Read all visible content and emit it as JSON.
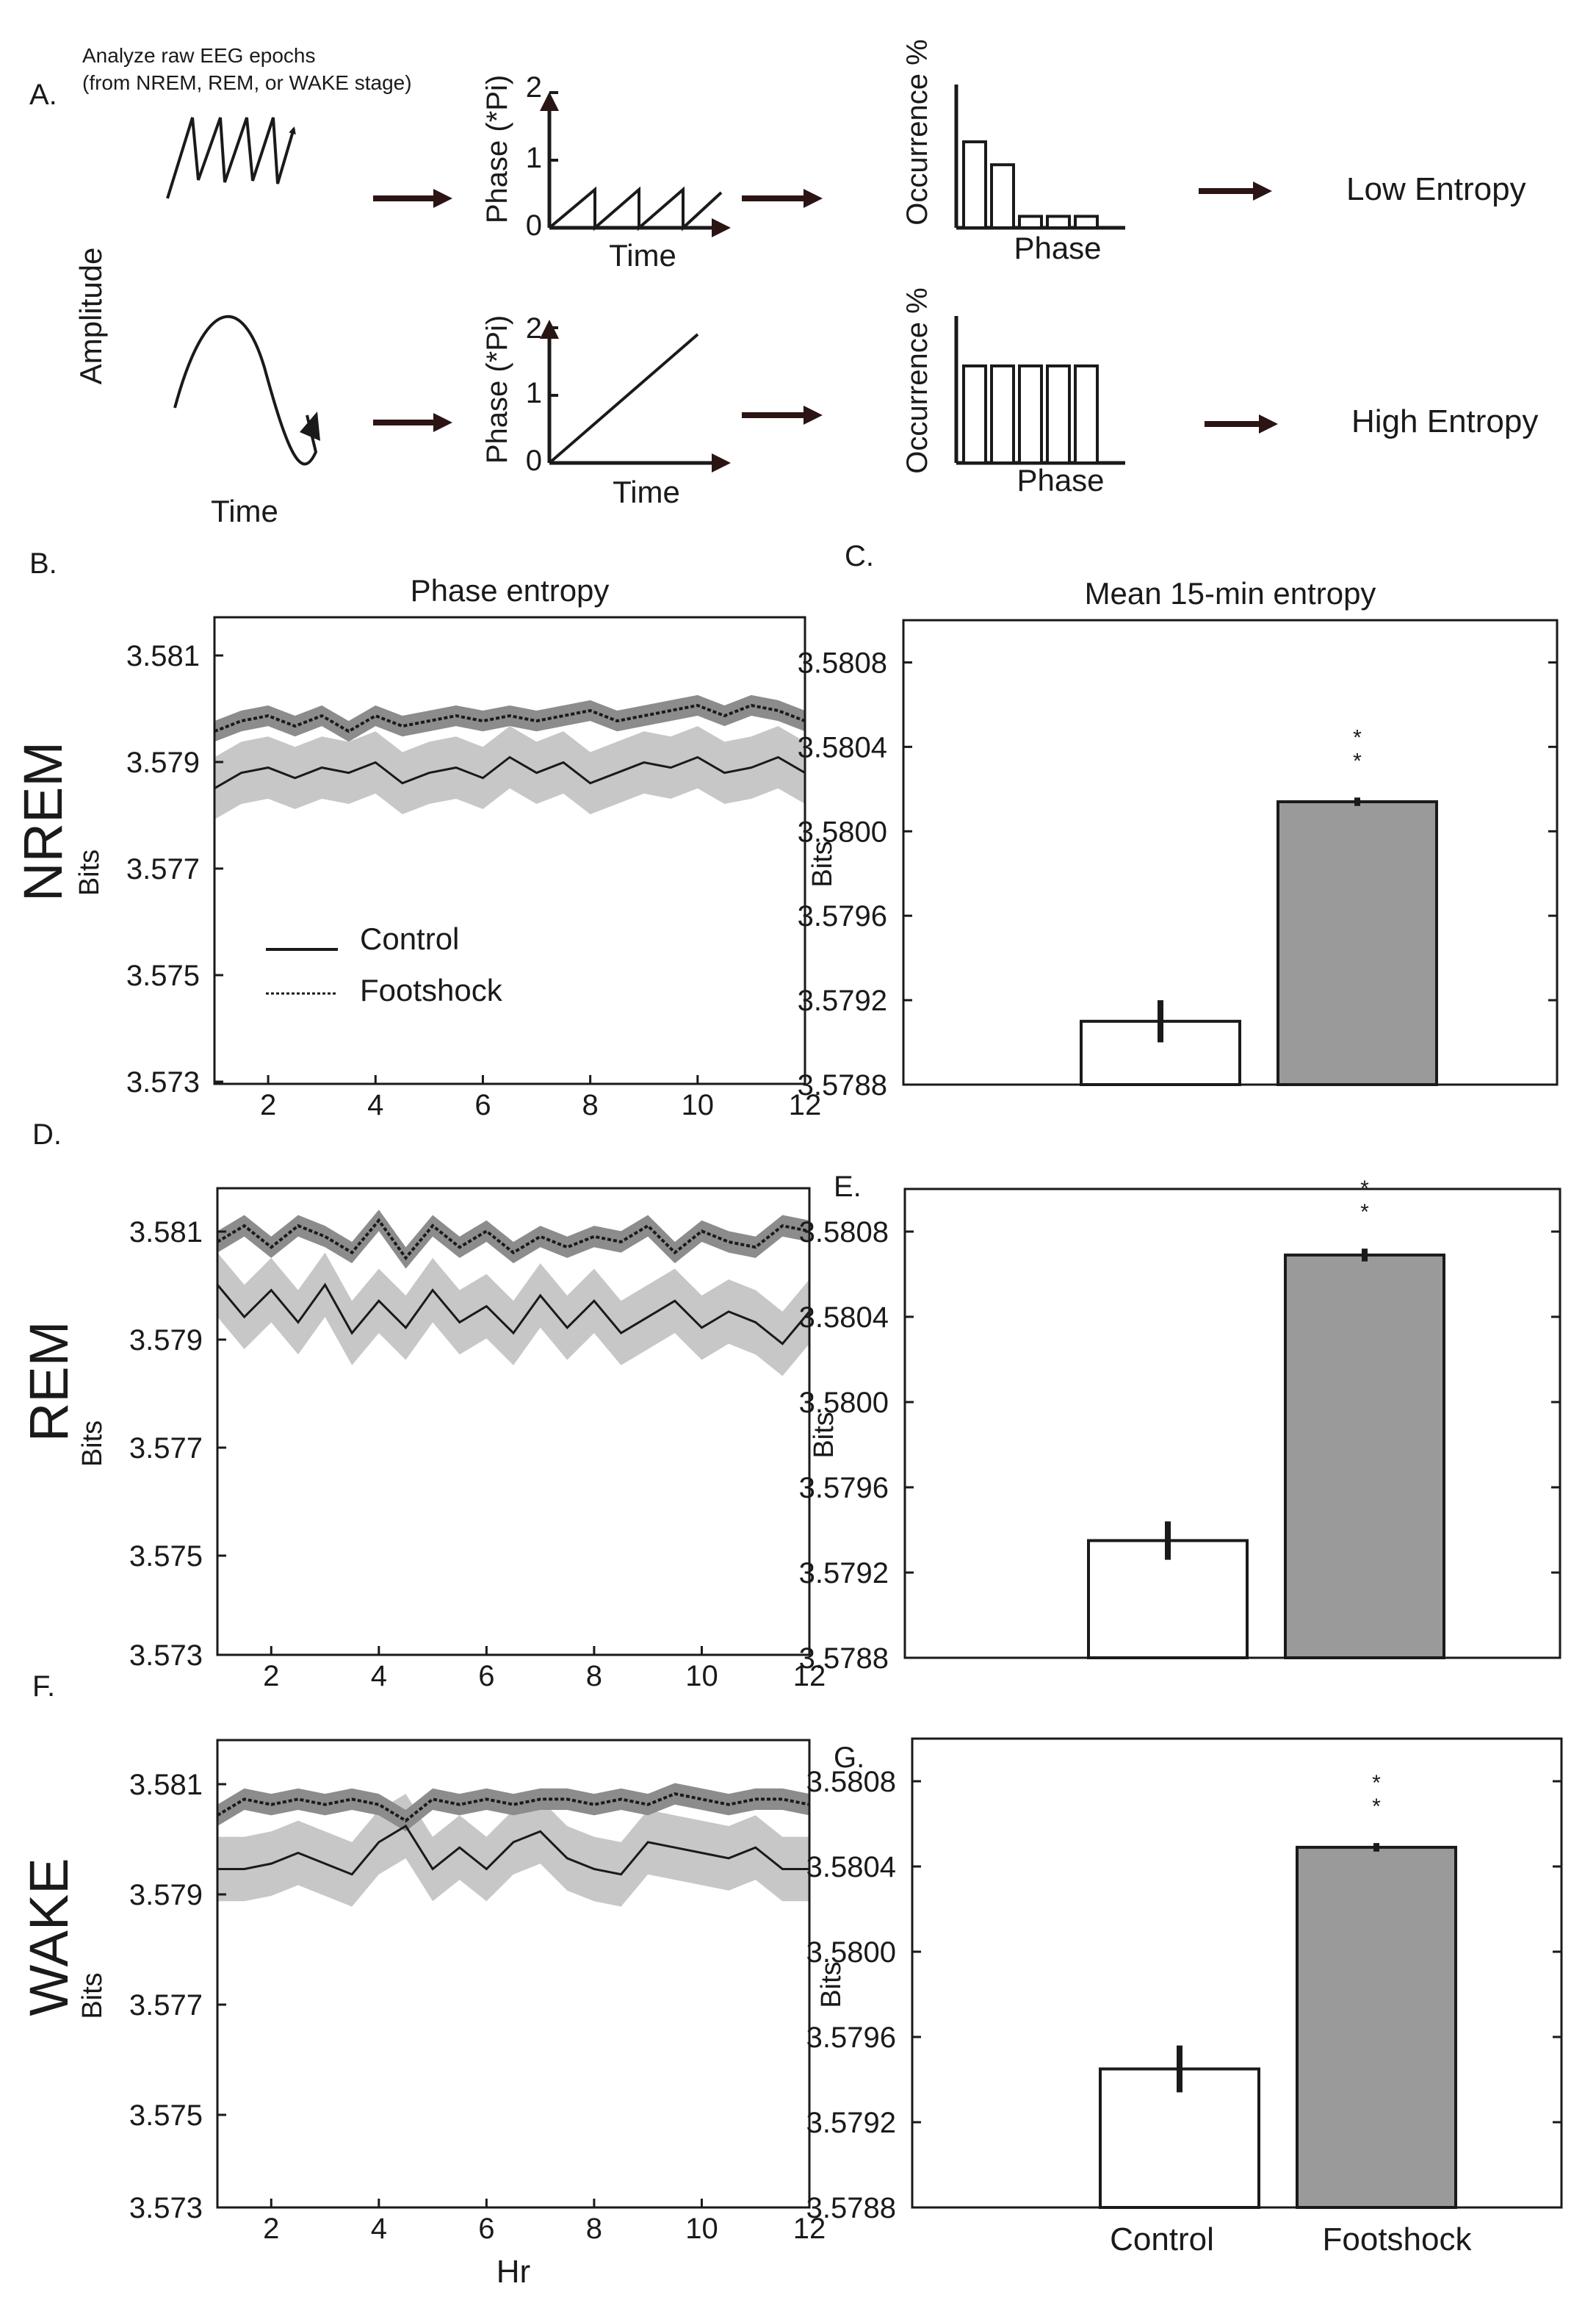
{
  "colors": {
    "ink": "#1a1a1a",
    "arrow": "#2b1414",
    "control_line": "#1a1a1a",
    "control_band": "#c7c7c7",
    "footshock_band": "#8c8c8c",
    "bar_control": "#ffffff",
    "bar_footshock": "#9a9a9a"
  },
  "panel_a": {
    "letter": "A.",
    "note_line1": "Analyze raw EEG epochs",
    "note_line2": "(from NREM, REM, or WAKE stage)",
    "amplitude_label": "Amplitude",
    "time_label": "Time",
    "phase_axis_label": "Phase (*Pi)",
    "phase_ticks": [
      "2",
      "1",
      "0"
    ],
    "occurrence_label": "Occurrence %",
    "phase_label": "Phase",
    "top_hist_rel": [
      0.6,
      0.44,
      0.08,
      0.08,
      0.08
    ],
    "bottom_hist_rel": [
      0.66,
      0.66,
      0.66,
      0.66,
      0.66
    ],
    "low_entropy": "Low Entropy",
    "high_entropy": "High Entropy"
  },
  "row_titles": [
    "NREM",
    "REM",
    "WAKE"
  ],
  "legend": {
    "control": "Control",
    "footshock": "Footshock"
  },
  "significance": "* *",
  "chart_data": [
    {
      "id": "B",
      "letter": "B.",
      "type": "line",
      "title": "Phase entropy",
      "xlabel": "",
      "ylabel": "Bits",
      "xlim": [
        1,
        12
      ],
      "ylim": [
        3.573,
        3.582
      ],
      "yticks": [
        "3.581",
        "3.579",
        "3.577",
        "3.575",
        "3.573"
      ],
      "xticks": [
        "2",
        "4",
        "6",
        "8",
        "10",
        "12"
      ],
      "series": [
        {
          "name": "Control",
          "x": [
            1,
            1.5,
            2,
            2.5,
            3,
            3.5,
            4,
            4.5,
            5,
            5.5,
            6,
            6.5,
            7,
            7.5,
            8,
            8.5,
            9,
            9.5,
            10,
            10.5,
            11,
            11.5,
            12
          ],
          "y": [
            3.5787,
            3.579,
            3.5791,
            3.5789,
            3.5791,
            3.579,
            3.5792,
            3.5788,
            3.579,
            3.5791,
            3.5789,
            3.5793,
            3.579,
            3.5792,
            3.5788,
            3.579,
            3.5792,
            3.5791,
            3.5793,
            3.579,
            3.5791,
            3.5793,
            3.579
          ],
          "band": 0.0006
        },
        {
          "name": "Footshock",
          "x": [
            1,
            1.5,
            2,
            2.5,
            3,
            3.5,
            4,
            4.5,
            5,
            5.5,
            6,
            6.5,
            7,
            7.5,
            8,
            8.5,
            9,
            9.5,
            10,
            10.5,
            11,
            11.5,
            12
          ],
          "y": [
            3.5798,
            3.58,
            3.5801,
            3.5799,
            3.5801,
            3.5798,
            3.5801,
            3.5799,
            3.58,
            3.5801,
            3.58,
            3.5801,
            3.58,
            3.5801,
            3.5802,
            3.58,
            3.5801,
            3.5802,
            3.5803,
            3.5801,
            3.5803,
            3.5802,
            3.58
          ],
          "band": 0.0002
        }
      ]
    },
    {
      "id": "C",
      "letter": "C.",
      "type": "bar",
      "title": "Mean 15-min entropy",
      "ylabel": "Bits",
      "ylim": [
        3.5788,
        3.581
      ],
      "yticks": [
        "3.5808",
        "3.5804",
        "3.5800",
        "3.5796",
        "3.5792",
        "3.5788"
      ],
      "categories": [
        "Control",
        "Footshock"
      ],
      "values": [
        3.5791,
        3.58014
      ],
      "errors": [
        0.0001,
        2e-05
      ],
      "significant": [
        false,
        true
      ]
    },
    {
      "id": "D",
      "letter": "D.",
      "type": "line",
      "title": "",
      "xlabel": "",
      "ylabel": "Bits",
      "xlim": [
        1,
        12
      ],
      "ylim": [
        3.573,
        3.5817
      ],
      "yticks": [
        "3.581",
        "3.579",
        "3.577",
        "3.575",
        "3.573"
      ],
      "xticks": [
        "2",
        "4",
        "6",
        "8",
        "10",
        "12"
      ],
      "series": [
        {
          "name": "Control",
          "x": [
            1,
            1.5,
            2,
            2.5,
            3,
            3.5,
            4,
            4.5,
            5,
            5.5,
            6,
            6.5,
            7,
            7.5,
            8,
            8.5,
            9,
            9.5,
            10,
            10.5,
            11,
            11.5,
            12
          ],
          "y": [
            3.5799,
            3.5793,
            3.5798,
            3.5792,
            3.5799,
            3.579,
            3.5796,
            3.5791,
            3.5798,
            3.5792,
            3.5795,
            3.579,
            3.5797,
            3.5791,
            3.5796,
            3.579,
            3.5793,
            3.5796,
            3.5791,
            3.5794,
            3.5792,
            3.5788,
            3.5794
          ],
          "band": 0.0006
        },
        {
          "name": "Footshock",
          "x": [
            1,
            1.5,
            2,
            2.5,
            3,
            3.5,
            4,
            4.5,
            5,
            5.5,
            6,
            6.5,
            7,
            7.5,
            8,
            8.5,
            9,
            9.5,
            10,
            10.5,
            11,
            11.5,
            12
          ],
          "y": [
            3.5807,
            3.581,
            3.5806,
            3.581,
            3.5808,
            3.5805,
            3.5811,
            3.5804,
            3.581,
            3.5806,
            3.5809,
            3.5805,
            3.5808,
            3.5806,
            3.5808,
            3.5807,
            3.581,
            3.5805,
            3.5809,
            3.5807,
            3.5806,
            3.581,
            3.5809
          ],
          "band": 0.0002
        }
      ]
    },
    {
      "id": "E",
      "letter": "E.",
      "type": "bar",
      "title": "",
      "ylabel": "Bits",
      "ylim": [
        3.5788,
        3.581
      ],
      "yticks": [
        "3.5808",
        "3.5804",
        "3.5800",
        "3.5796",
        "3.5792",
        "3.5788"
      ],
      "categories": [
        "Control",
        "Footshock"
      ],
      "values": [
        3.57935,
        3.58069
      ],
      "errors": [
        9e-05,
        3e-05
      ],
      "significant": [
        false,
        true
      ]
    },
    {
      "id": "F",
      "letter": "F.",
      "type": "line",
      "title": "",
      "xlabel": "Hr",
      "ylabel": "Bits",
      "xlim": [
        1,
        12
      ],
      "ylim": [
        3.573,
        3.5817
      ],
      "yticks": [
        "3.581",
        "3.579",
        "3.577",
        "3.575",
        "3.573"
      ],
      "xticks": [
        "2",
        "4",
        "6",
        "8",
        "10",
        "12"
      ],
      "series": [
        {
          "name": "Control",
          "x": [
            1,
            1.5,
            2,
            2.5,
            3,
            3.5,
            4,
            4.5,
            5,
            5.5,
            6,
            6.5,
            7,
            7.5,
            8,
            8.5,
            9,
            9.5,
            10,
            10.5,
            11,
            11.5,
            12
          ],
          "y": [
            3.5793,
            3.5793,
            3.5794,
            3.5796,
            3.5794,
            3.5792,
            3.5798,
            3.5801,
            3.5793,
            3.5797,
            3.5793,
            3.5798,
            3.58,
            3.5795,
            3.5793,
            3.5792,
            3.5798,
            3.5797,
            3.5796,
            3.5795,
            3.5797,
            3.5793,
            3.5793
          ],
          "band": 0.0006
        },
        {
          "name": "Footshock",
          "x": [
            1,
            1.5,
            2,
            2.5,
            3,
            3.5,
            4,
            4.5,
            5,
            5.5,
            6,
            6.5,
            7,
            7.5,
            8,
            8.5,
            9,
            9.5,
            10,
            10.5,
            11,
            11.5,
            12
          ],
          "y": [
            3.5803,
            3.5806,
            3.5805,
            3.5806,
            3.5805,
            3.5806,
            3.5805,
            3.5802,
            3.5806,
            3.5805,
            3.5806,
            3.5805,
            3.5806,
            3.5806,
            3.5805,
            3.5806,
            3.5805,
            3.5807,
            3.5806,
            3.5805,
            3.5806,
            3.5806,
            3.5805
          ],
          "band": 0.0002
        }
      ]
    },
    {
      "id": "G",
      "letter": "G.",
      "type": "bar",
      "title": "",
      "ylabel": "Bits",
      "ylim": [
        3.5788,
        3.581
      ],
      "yticks": [
        "3.5808",
        "3.5804",
        "3.5800",
        "3.5796",
        "3.5792",
        "3.5788"
      ],
      "categories": [
        "Control",
        "Footshock"
      ],
      "values": [
        3.57945,
        3.58049
      ],
      "errors": [
        0.00011,
        2e-05
      ],
      "significant": [
        false,
        true
      ]
    }
  ]
}
